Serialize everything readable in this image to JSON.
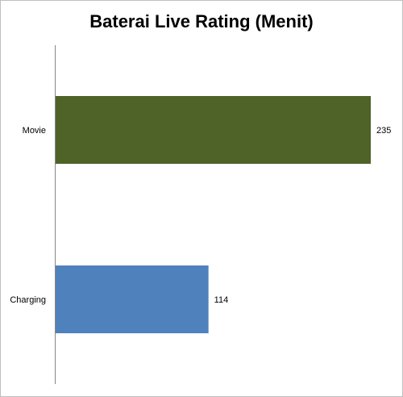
{
  "chart_data": {
    "type": "bar",
    "orientation": "horizontal",
    "title": "Baterai Live Rating (Menit)",
    "categories": [
      "Movie",
      "Charging"
    ],
    "values": [
      235,
      114
    ],
    "colors": [
      "#4f6228",
      "#4f81bd"
    ],
    "data_labels": [
      "235",
      "114"
    ],
    "xlabel": "",
    "ylabel": "",
    "xlim": [
      0,
      235
    ],
    "grid": false,
    "legend": "none"
  }
}
